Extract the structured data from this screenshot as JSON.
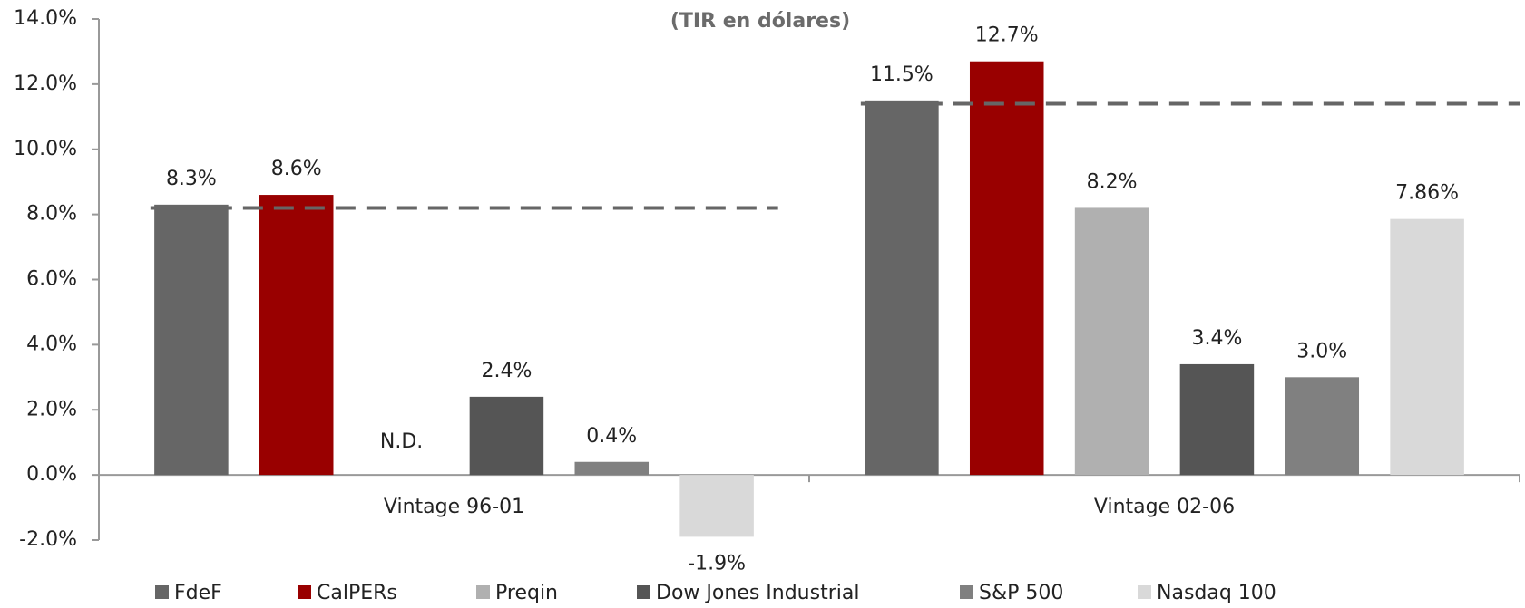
{
  "chart_data": {
    "type": "bar",
    "subtitle": "(TIR en dólares)",
    "categories": [
      "Vintage 96-01",
      "Vintage 02-06"
    ],
    "series": [
      {
        "name": "FdeF",
        "color": "#666666",
        "values": [
          8.3,
          11.5
        ],
        "value_labels": [
          "8.3%",
          "11.5%"
        ]
      },
      {
        "name": "CalPERs",
        "color": "#990000",
        "values": [
          8.6,
          12.7
        ],
        "value_labels": [
          "8.6%",
          "12.7%"
        ]
      },
      {
        "name": "Preqin",
        "color": "#b0b0b0",
        "values": [
          null,
          8.2
        ],
        "value_labels": [
          "N.D.",
          "8.2%"
        ]
      },
      {
        "name": "Dow Jones Industrial",
        "color": "#555555",
        "values": [
          2.4,
          3.4
        ],
        "value_labels": [
          "2.4%",
          "3.4%"
        ]
      },
      {
        "name": "S&P 500",
        "color": "#808080",
        "values": [
          0.4,
          3.0
        ],
        "value_labels": [
          "0.4%",
          "3.0%"
        ]
      },
      {
        "name": "Nasdaq 100",
        "color": "#d9d9d9",
        "values": [
          -1.9,
          7.86
        ],
        "value_labels": [
          "-1.9%",
          "7.86%"
        ]
      }
    ],
    "dashed_lines": {
      "color": "#666666",
      "values": [
        8.2,
        11.4
      ]
    },
    "ylim": [
      -2,
      14
    ],
    "yticks": [
      {
        "value": -2,
        "label": "-2.0%"
      },
      {
        "value": 0,
        "label": "0.0%"
      },
      {
        "value": 2,
        "label": "2.0%"
      },
      {
        "value": 4,
        "label": "4.0%"
      },
      {
        "value": 6,
        "label": "6.0%"
      },
      {
        "value": 8,
        "label": "8.0%"
      },
      {
        "value": 10,
        "label": "10.0%"
      },
      {
        "value": 12,
        "label": "12.0%"
      },
      {
        "value": 14,
        "label": "14.0%"
      }
    ],
    "legend": "bottom"
  }
}
